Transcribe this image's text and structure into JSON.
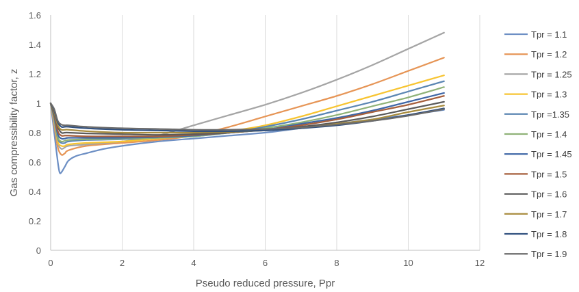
{
  "chart_data": {
    "type": "line",
    "title": "",
    "xlabel": "Pseudo reduced pressure, Ppr",
    "ylabel": "Gas compressibility factor, z",
    "xlim": [
      0,
      12
    ],
    "ylim": [
      0,
      1.6
    ],
    "xticks": [
      "0",
      "2",
      "4",
      "6",
      "8",
      "10",
      "12"
    ],
    "yticks": [
      "0",
      "0.2",
      "0.4",
      "0.6",
      "0.8",
      "1",
      "1.2",
      "1.4",
      "1.6"
    ],
    "grid": "vertical",
    "legend_position": "right",
    "series": [
      {
        "name": "Tpr = 1.1",
        "color": "#6d8fc4",
        "x": [
          0,
          0.1,
          0.2,
          0.25,
          0.3,
          0.4,
          0.5,
          0.7,
          1,
          1.5,
          2,
          3,
          4,
          5,
          6,
          7,
          8,
          9,
          10,
          11
        ],
        "y": [
          1.0,
          0.8,
          0.6,
          0.53,
          0.53,
          0.57,
          0.61,
          0.64,
          0.66,
          0.69,
          0.71,
          0.74,
          0.76,
          0.78,
          0.8,
          0.83,
          0.86,
          0.89,
          0.92,
          0.955
        ]
      },
      {
        "name": "Tpr = 1.2",
        "color": "#e69556",
        "x": [
          0,
          0.1,
          0.2,
          0.3,
          0.4,
          0.5,
          1,
          2,
          3,
          4,
          5,
          6,
          7,
          8,
          9,
          10,
          11
        ],
        "y": [
          1.0,
          0.85,
          0.7,
          0.65,
          0.66,
          0.68,
          0.71,
          0.73,
          0.75,
          0.78,
          0.84,
          0.91,
          0.98,
          1.05,
          1.13,
          1.22,
          1.31
        ]
      },
      {
        "name": "Tpr = 1.25",
        "color": "#a5a5a5",
        "x": [
          0,
          0.1,
          0.2,
          0.3,
          0.4,
          0.5,
          1,
          2,
          3,
          4,
          5,
          6,
          7,
          8,
          9,
          10,
          11
        ],
        "y": [
          1.0,
          0.87,
          0.73,
          0.69,
          0.7,
          0.71,
          0.72,
          0.74,
          0.78,
          0.85,
          0.92,
          0.99,
          1.07,
          1.16,
          1.26,
          1.37,
          1.48
        ]
      },
      {
        "name": "Tpr = 1.3",
        "color": "#f7c431",
        "x": [
          0,
          0.1,
          0.2,
          0.3,
          0.4,
          0.5,
          1,
          2,
          3,
          4,
          5,
          6,
          7,
          8,
          9,
          10,
          11
        ],
        "y": [
          1.0,
          0.88,
          0.74,
          0.71,
          0.71,
          0.72,
          0.73,
          0.74,
          0.76,
          0.78,
          0.81,
          0.85,
          0.91,
          0.98,
          1.05,
          1.12,
          1.19
        ]
      },
      {
        "name": "Tpr =1.35",
        "color": "#5b86b3",
        "x": [
          0,
          0.1,
          0.2,
          0.3,
          0.4,
          0.5,
          1,
          2,
          3,
          4,
          5,
          6,
          7,
          8,
          9,
          10,
          11
        ],
        "y": [
          1.0,
          0.89,
          0.76,
          0.73,
          0.73,
          0.74,
          0.75,
          0.755,
          0.765,
          0.775,
          0.8,
          0.84,
          0.89,
          0.95,
          1.01,
          1.08,
          1.15
        ]
      },
      {
        "name": "Tpr = 1.4",
        "color": "#8fb277",
        "x": [
          0,
          0.1,
          0.2,
          0.3,
          0.4,
          0.5,
          1,
          2,
          3,
          4,
          5,
          6,
          7,
          8,
          9,
          10,
          11
        ],
        "y": [
          1.0,
          0.9,
          0.77,
          0.74,
          0.745,
          0.75,
          0.755,
          0.76,
          0.765,
          0.775,
          0.8,
          0.83,
          0.87,
          0.92,
          0.98,
          1.04,
          1.11
        ]
      },
      {
        "name": "Tpr = 1.45",
        "color": "#3f67a6",
        "x": [
          0,
          0.1,
          0.2,
          0.3,
          0.4,
          0.5,
          1,
          2,
          3,
          4,
          5,
          6,
          7,
          8,
          9,
          10,
          11
        ],
        "y": [
          1.0,
          0.91,
          0.79,
          0.76,
          0.76,
          0.765,
          0.765,
          0.765,
          0.77,
          0.78,
          0.8,
          0.82,
          0.86,
          0.9,
          0.95,
          1.01,
          1.07
        ]
      },
      {
        "name": "Tpr = 1.5",
        "color": "#a65f3c",
        "x": [
          0,
          0.1,
          0.2,
          0.3,
          0.4,
          0.5,
          1,
          2,
          3,
          4,
          5,
          6,
          7,
          8,
          9,
          10,
          11
        ],
        "y": [
          1.0,
          0.92,
          0.81,
          0.78,
          0.78,
          0.78,
          0.775,
          0.775,
          0.775,
          0.785,
          0.8,
          0.82,
          0.85,
          0.89,
          0.94,
          0.99,
          1.05
        ]
      },
      {
        "name": "Tpr = 1.6",
        "color": "#5a5a5a",
        "x": [
          0,
          0.1,
          0.2,
          0.3,
          0.4,
          0.5,
          1,
          2,
          3,
          4,
          5,
          6,
          7,
          8,
          9,
          10,
          11
        ],
        "y": [
          1.0,
          0.93,
          0.84,
          0.8,
          0.8,
          0.8,
          0.795,
          0.79,
          0.785,
          0.79,
          0.8,
          0.82,
          0.84,
          0.87,
          0.91,
          0.96,
          1.01
        ]
      },
      {
        "name": "Tpr = 1.7",
        "color": "#a88c3e",
        "x": [
          0,
          0.1,
          0.2,
          0.3,
          0.4,
          0.5,
          1,
          2,
          3,
          4,
          5,
          6,
          7,
          8,
          9,
          10,
          11
        ],
        "y": [
          1.0,
          0.94,
          0.85,
          0.82,
          0.82,
          0.82,
          0.81,
          0.8,
          0.8,
          0.8,
          0.805,
          0.815,
          0.83,
          0.86,
          0.89,
          0.94,
          0.985
        ]
      },
      {
        "name": "Tpr = 1.8",
        "color": "#32517f",
        "x": [
          0,
          0.1,
          0.2,
          0.3,
          0.4,
          0.5,
          1,
          2,
          3,
          4,
          5,
          6,
          7,
          8,
          9,
          10,
          11
        ],
        "y": [
          1.0,
          0.95,
          0.87,
          0.84,
          0.84,
          0.84,
          0.83,
          0.82,
          0.815,
          0.81,
          0.81,
          0.815,
          0.83,
          0.85,
          0.88,
          0.92,
          0.965
        ]
      },
      {
        "name": "Tpr = 1.9",
        "color": "#6b6b6b",
        "x": [
          0,
          0.1,
          0.2,
          0.3,
          0.4,
          0.5,
          1,
          2,
          3,
          4,
          5,
          6,
          7,
          8,
          9,
          10,
          11
        ],
        "y": [
          1.0,
          0.96,
          0.88,
          0.855,
          0.85,
          0.85,
          0.84,
          0.83,
          0.825,
          0.82,
          0.82,
          0.825,
          0.835,
          0.855,
          0.88,
          0.915,
          0.96
        ]
      }
    ]
  }
}
